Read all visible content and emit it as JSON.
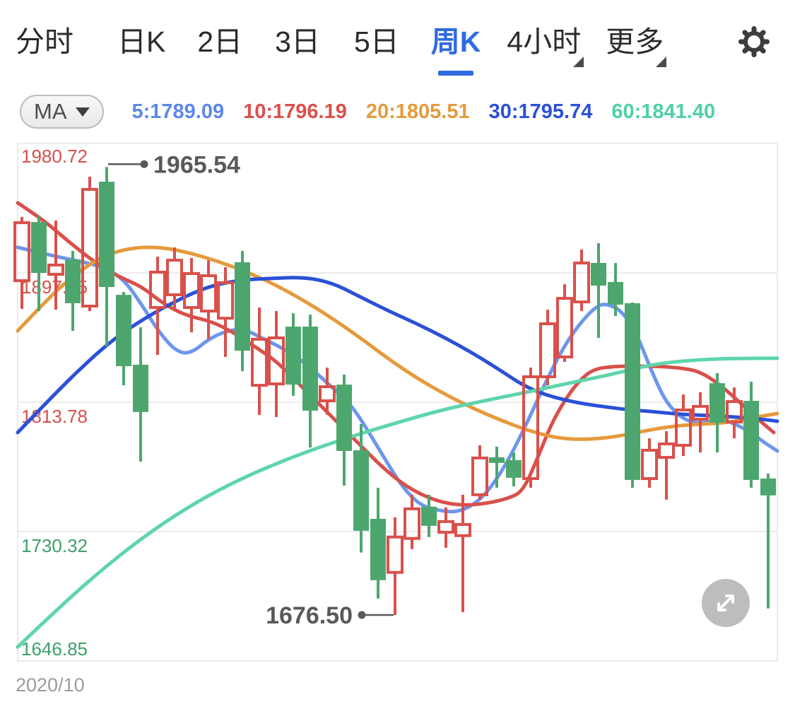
{
  "nav": {
    "items": [
      {
        "label": "分时",
        "active": false,
        "dropdown": false
      },
      {
        "label": "日K",
        "active": false,
        "dropdown": false
      },
      {
        "label": "2日",
        "active": false,
        "dropdown": false
      },
      {
        "label": "3日",
        "active": false,
        "dropdown": false
      },
      {
        "label": "5日",
        "active": false,
        "dropdown": false
      },
      {
        "label": "周K",
        "active": true,
        "dropdown": false
      },
      {
        "label": "4小时",
        "active": false,
        "dropdown": true
      },
      {
        "label": "更多",
        "active": false,
        "dropdown": true
      }
    ],
    "active_color": "#2f6be0"
  },
  "icons": {
    "settings": "gear-icon",
    "ma_caret": "caret-down-icon",
    "nav_dropdown": "dropdown-corner-icon",
    "expand": "expand-arrows-icon"
  },
  "ma_bar": {
    "button_label": "MA",
    "values": [
      {
        "text": "5:1789.09",
        "color": "#5c88e8"
      },
      {
        "text": "10:1796.19",
        "color": "#dd4f4b"
      },
      {
        "text": "20:1805.51",
        "color": "#e59a3c"
      },
      {
        "text": "30:1795.74",
        "color": "#2b50d8"
      },
      {
        "text": "60:1841.40",
        "color": "#4fd0a5"
      }
    ]
  },
  "chart_data": {
    "type": "candlestick",
    "period": "周K",
    "ylim": [
      1646.85,
      1980.72
    ],
    "grid_color": "#ececec",
    "y_gridlines": [
      {
        "value": 1980.72,
        "label": "1980.72",
        "color": "#d7504d"
      },
      {
        "value": 1897.25,
        "label": "1897.25",
        "color": "#d7504d"
      },
      {
        "value": 1813.78,
        "label": "1813.78",
        "color": "#d7504d"
      },
      {
        "value": 1730.32,
        "label": "1730.32",
        "color": "#3da06a"
      },
      {
        "value": 1646.85,
        "label": "1646.85",
        "color": "#3da06a"
      }
    ],
    "x_axis_start_label": "2020/10",
    "x_label_color": "#9b9ba1",
    "annotations": {
      "color": "#59595b",
      "high": {
        "label": "1965.54",
        "value": 1965.54,
        "candle_index": 5
      },
      "low": {
        "label": "1676.50",
        "value": 1676.5,
        "candle_index": 22
      }
    },
    "candles": {
      "format": [
        "open",
        "high",
        "low",
        "close"
      ],
      "up_color": "#d9504b",
      "down_color": "#4da66e",
      "values": [
        [
          1892.2,
          1933.3,
          1874.0,
          1929.6
        ],
        [
          1929.6,
          1934.2,
          1872.6,
          1897.7
        ],
        [
          1896.3,
          1931.0,
          1873.5,
          1902.3
        ],
        [
          1905.4,
          1911.4,
          1859.8,
          1878.1
        ],
        [
          1875.8,
          1959.3,
          1872.6,
          1951.1
        ],
        [
          1955.6,
          1965.54,
          1849.8,
          1888.6
        ],
        [
          1882.6,
          1884.9,
          1824.7,
          1837.5
        ],
        [
          1837.5,
          1862.1,
          1775.5,
          1807.9
        ],
        [
          1874.9,
          1907.7,
          1844.3,
          1897.7
        ],
        [
          1883.1,
          1913.7,
          1872.6,
          1905.4
        ],
        [
          1874.9,
          1906.8,
          1858.9,
          1896.8
        ],
        [
          1872.6,
          1905.4,
          1854.4,
          1895.4
        ],
        [
          1868.0,
          1900.9,
          1843.0,
          1890.9
        ],
        [
          1903.6,
          1911.4,
          1833.8,
          1847.5
        ],
        [
          1824.7,
          1874.9,
          1805.6,
          1854.4
        ],
        [
          1825.6,
          1872.6,
          1804.2,
          1855.3
        ],
        [
          1862.1,
          1871.2,
          1817.9,
          1825.6
        ],
        [
          1862.1,
          1870.3,
          1784.6,
          1808.8
        ],
        [
          1814.7,
          1836.1,
          1805.6,
          1823.8
        ],
        [
          1824.7,
          1831.6,
          1760.0,
          1782.8
        ],
        [
          1782.3,
          1799.7,
          1716.8,
          1731.3
        ],
        [
          1738.1,
          1758.6,
          1687.1,
          1699.4
        ],
        [
          1704.0,
          1739.5,
          1676.5,
          1726.8
        ],
        [
          1725.9,
          1754.1,
          1719.0,
          1745.0
        ],
        [
          1745.9,
          1754.1,
          1726.8,
          1734.5
        ],
        [
          1729.9,
          1745.9,
          1719.9,
          1736.8
        ],
        [
          1727.7,
          1754.1,
          1678.3,
          1734.9
        ],
        [
          1754.1,
          1786.0,
          1750.9,
          1777.8
        ],
        [
          1777.8,
          1785.1,
          1758.6,
          1775.1
        ],
        [
          1776.0,
          1781.4,
          1759.5,
          1765.5
        ],
        [
          1764.5,
          1836.1,
          1758.6,
          1830.2
        ],
        [
          1830.2,
          1873.5,
          1824.7,
          1864.4
        ],
        [
          1843.0,
          1889.9,
          1839.8,
          1880.8
        ],
        [
          1878.5,
          1912.3,
          1872.6,
          1903.6
        ],
        [
          1903.2,
          1916.4,
          1855.3,
          1889.5
        ],
        [
          1890.9,
          1903.6,
          1869.4,
          1877.2
        ],
        [
          1877.2,
          1878.1,
          1758.6,
          1764.1
        ],
        [
          1764.5,
          1790.5,
          1758.6,
          1782.8
        ],
        [
          1778.2,
          1795.1,
          1750.9,
          1786.9
        ],
        [
          1786.0,
          1818.8,
          1779.1,
          1808.8
        ],
        [
          1802.8,
          1820.2,
          1781.4,
          1811.1
        ],
        [
          1825.6,
          1832.5,
          1781.4,
          1801.0
        ],
        [
          1801.0,
          1823.3,
          1790.5,
          1814.2
        ],
        [
          1814.2,
          1827.0,
          1758.6,
          1764.1
        ],
        [
          1764.1,
          1767.7,
          1680.7,
          1754.1
        ]
      ]
    },
    "ma_lines": [
      {
        "name": "MA5",
        "color": "#6d96ec",
        "points": [
          [
            25,
            1913.7
          ],
          [
            75,
            1908.2
          ],
          [
            125,
            1903.6
          ],
          [
            150,
            1900.0
          ],
          [
            175,
            1893.1
          ],
          [
            200,
            1877.2
          ],
          [
            225,
            1858.9
          ],
          [
            250,
            1846.2
          ],
          [
            270,
            1845.2
          ],
          [
            295,
            1854.4
          ],
          [
            320,
            1859.8
          ],
          [
            345,
            1861.2
          ],
          [
            370,
            1855.3
          ],
          [
            395,
            1849.8
          ],
          [
            420,
            1843.0
          ],
          [
            445,
            1833.8
          ],
          [
            470,
            1823.3
          ],
          [
            495,
            1813.3
          ],
          [
            520,
            1796.0
          ],
          [
            545,
            1776.9
          ],
          [
            570,
            1758.6
          ],
          [
            595,
            1747.2
          ],
          [
            620,
            1744.0
          ],
          [
            645,
            1742.7
          ],
          [
            670,
            1747.2
          ],
          [
            695,
            1758.6
          ],
          [
            720,
            1776.9
          ],
          [
            745,
            1799.7
          ],
          [
            770,
            1824.7
          ],
          [
            795,
            1847.5
          ],
          [
            820,
            1864.4
          ],
          [
            845,
            1876.3
          ],
          [
            860,
            1877.2
          ],
          [
            880,
            1872.6
          ],
          [
            900,
            1858.9
          ],
          [
            920,
            1836.1
          ],
          [
            940,
            1815.6
          ],
          [
            960,
            1805.1
          ],
          [
            980,
            1800.5
          ],
          [
            1000,
            1800.5
          ],
          [
            1020,
            1803.3
          ],
          [
            1040,
            1799.7
          ],
          [
            1060,
            1795.1
          ],
          [
            1080,
            1788.3
          ],
          [
            1100,
            1782.3
          ]
        ]
      },
      {
        "name": "MA10",
        "color": "#d9504b",
        "points": [
          [
            25,
            1942.4
          ],
          [
            60,
            1931.9
          ],
          [
            95,
            1918.2
          ],
          [
            130,
            1905.4
          ],
          [
            165,
            1895.4
          ],
          [
            200,
            1888.6
          ],
          [
            225,
            1879.4
          ],
          [
            250,
            1872.6
          ],
          [
            270,
            1869.0
          ],
          [
            300,
            1865.8
          ],
          [
            330,
            1858.9
          ],
          [
            360,
            1849.8
          ],
          [
            390,
            1840.7
          ],
          [
            420,
            1827.0
          ],
          [
            450,
            1813.3
          ],
          [
            480,
            1799.7
          ],
          [
            510,
            1786.0
          ],
          [
            540,
            1772.3
          ],
          [
            570,
            1760.9
          ],
          [
            600,
            1753.2
          ],
          [
            630,
            1748.6
          ],
          [
            660,
            1747.2
          ],
          [
            690,
            1748.6
          ],
          [
            720,
            1751.8
          ],
          [
            740,
            1756.4
          ],
          [
            760,
            1776.9
          ],
          [
            780,
            1799.7
          ],
          [
            800,
            1815.6
          ],
          [
            820,
            1827.9
          ],
          [
            840,
            1835.2
          ],
          [
            870,
            1837.0
          ],
          [
            900,
            1837.0
          ],
          [
            930,
            1837.0
          ],
          [
            960,
            1836.1
          ],
          [
            990,
            1833.8
          ],
          [
            1020,
            1824.7
          ],
          [
            1050,
            1812.4
          ],
          [
            1075,
            1801.9
          ],
          [
            1095,
            1794.2
          ]
        ]
      },
      {
        "name": "MA20",
        "color": "#e59a3c",
        "points": [
          [
            25,
            1859.8
          ],
          [
            70,
            1881.7
          ],
          [
            110,
            1897.7
          ],
          [
            150,
            1909.1
          ],
          [
            190,
            1913.7
          ],
          [
            230,
            1913.7
          ],
          [
            270,
            1910.0
          ],
          [
            310,
            1904.5
          ],
          [
            350,
            1897.7
          ],
          [
            390,
            1889.5
          ],
          [
            430,
            1879.4
          ],
          [
            470,
            1868.0
          ],
          [
            510,
            1855.3
          ],
          [
            550,
            1841.6
          ],
          [
            590,
            1829.3
          ],
          [
            630,
            1818.8
          ],
          [
            670,
            1809.7
          ],
          [
            710,
            1801.9
          ],
          [
            750,
            1795.1
          ],
          [
            790,
            1790.5
          ],
          [
            830,
            1789.6
          ],
          [
            870,
            1791.4
          ],
          [
            910,
            1795.1
          ],
          [
            950,
            1798.3
          ],
          [
            990,
            1799.7
          ],
          [
            1030,
            1800.5
          ],
          [
            1070,
            1804.2
          ],
          [
            1100,
            1806.5
          ]
        ]
      },
      {
        "name": "MA30",
        "color": "#2b50d8",
        "points": [
          [
            25,
            1794.2
          ],
          [
            70,
            1815.6
          ],
          [
            115,
            1836.1
          ],
          [
            160,
            1854.4
          ],
          [
            205,
            1868.0
          ],
          [
            250,
            1879.4
          ],
          [
            295,
            1888.6
          ],
          [
            340,
            1892.7
          ],
          [
            380,
            1893.6
          ],
          [
            430,
            1894.5
          ],
          [
            470,
            1890.9
          ],
          [
            510,
            1881.7
          ],
          [
            550,
            1872.6
          ],
          [
            590,
            1864.4
          ],
          [
            630,
            1855.3
          ],
          [
            670,
            1845.2
          ],
          [
            710,
            1833.8
          ],
          [
            740,
            1824.7
          ],
          [
            770,
            1818.8
          ],
          [
            800,
            1815.1
          ],
          [
            830,
            1812.4
          ],
          [
            860,
            1810.6
          ],
          [
            890,
            1808.8
          ],
          [
            920,
            1807.9
          ],
          [
            950,
            1806.5
          ],
          [
            980,
            1805.6
          ],
          [
            1010,
            1805.1
          ],
          [
            1040,
            1804.2
          ],
          [
            1070,
            1803.3
          ],
          [
            1100,
            1801.5
          ]
        ]
      },
      {
        "name": "MA60",
        "color": "#5ed5ab",
        "points": [
          [
            25,
            1655.9
          ],
          [
            85,
            1681.9
          ],
          [
            145,
            1706.1
          ],
          [
            205,
            1727.6
          ],
          [
            265,
            1745.9
          ],
          [
            325,
            1760.9
          ],
          [
            385,
            1773.2
          ],
          [
            445,
            1783.7
          ],
          [
            505,
            1792.8
          ],
          [
            565,
            1801.0
          ],
          [
            625,
            1808.8
          ],
          [
            685,
            1814.7
          ],
          [
            745,
            1820.2
          ],
          [
            805,
            1826.1
          ],
          [
            865,
            1831.6
          ],
          [
            925,
            1838.4
          ],
          [
            985,
            1841.2
          ],
          [
            1045,
            1842.1
          ],
          [
            1100,
            1842.1
          ]
        ]
      }
    ]
  }
}
